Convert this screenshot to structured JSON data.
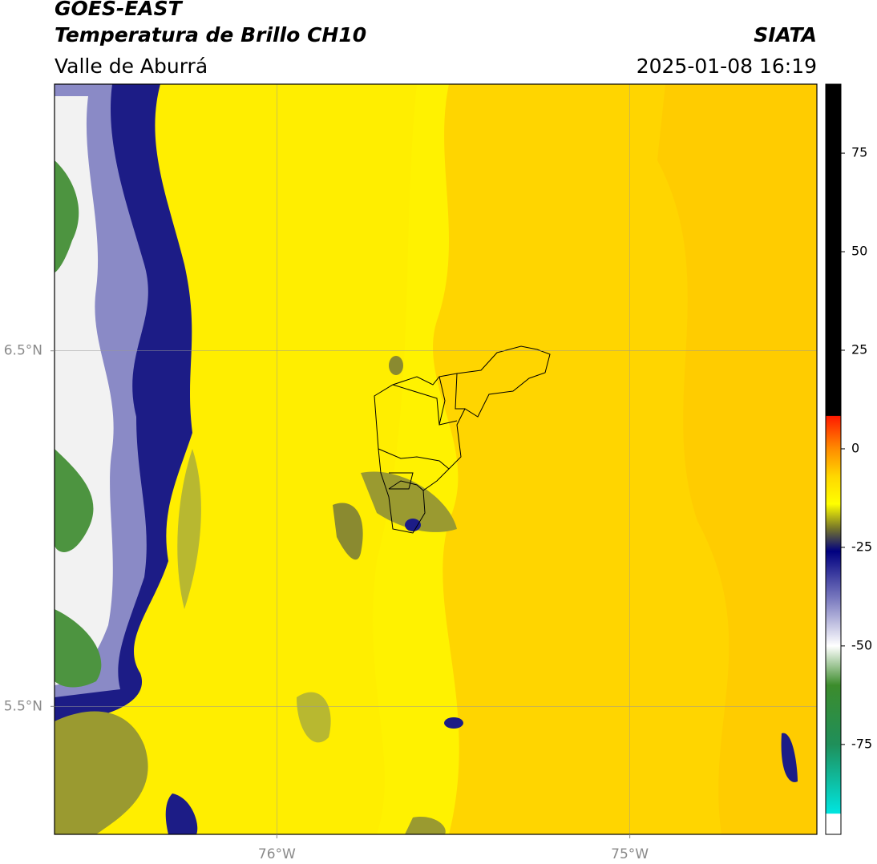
{
  "chart_data": {
    "type": "map",
    "title": "GOES-EAST",
    "subtitle": "Temperatura de Brillo CH10",
    "source": "SIATA",
    "region": "Valle de Aburrá",
    "datetime": "2025-01-08 16:19",
    "xlim": [
      -76.63,
      -74.47
    ],
    "ylim": [
      5.14,
      7.25
    ],
    "xticks": [
      {
        "value": -76,
        "label": "76°W"
      },
      {
        "value": -75,
        "label": "75°W"
      }
    ],
    "yticks": [
      {
        "value": 5.5,
        "label": "5.5°N"
      },
      {
        "value": 6.5,
        "label": "6.5°N"
      }
    ],
    "grid": true,
    "colorbar": {
      "lim": [
        -97.8,
        92.5
      ],
      "ticks": [
        75,
        50,
        25,
        0,
        -25,
        -50,
        -75
      ],
      "colormap": [
        {
          "value": 92.5,
          "color": "#000000"
        },
        {
          "value": 8.4,
          "color": "#000000"
        },
        {
          "value": 8.3,
          "color": "#ff1a00"
        },
        {
          "value": 0,
          "color": "#ff8c00"
        },
        {
          "value": -7,
          "color": "#ffd700"
        },
        {
          "value": -14,
          "color": "#ffff00"
        },
        {
          "value": -20,
          "color": "#7a7a28"
        },
        {
          "value": -26,
          "color": "#000080"
        },
        {
          "value": -38,
          "color": "#7a7abf"
        },
        {
          "value": -50,
          "color": "#ffffff"
        },
        {
          "value": -60,
          "color": "#3c8c2c"
        },
        {
          "value": -75,
          "color": "#1f8f5a"
        },
        {
          "value": -92.5,
          "color": "#00e5e0"
        },
        {
          "value": -92.6,
          "color": "#ffffff"
        },
        {
          "value": -97.8,
          "color": "#ffffff"
        }
      ]
    }
  }
}
